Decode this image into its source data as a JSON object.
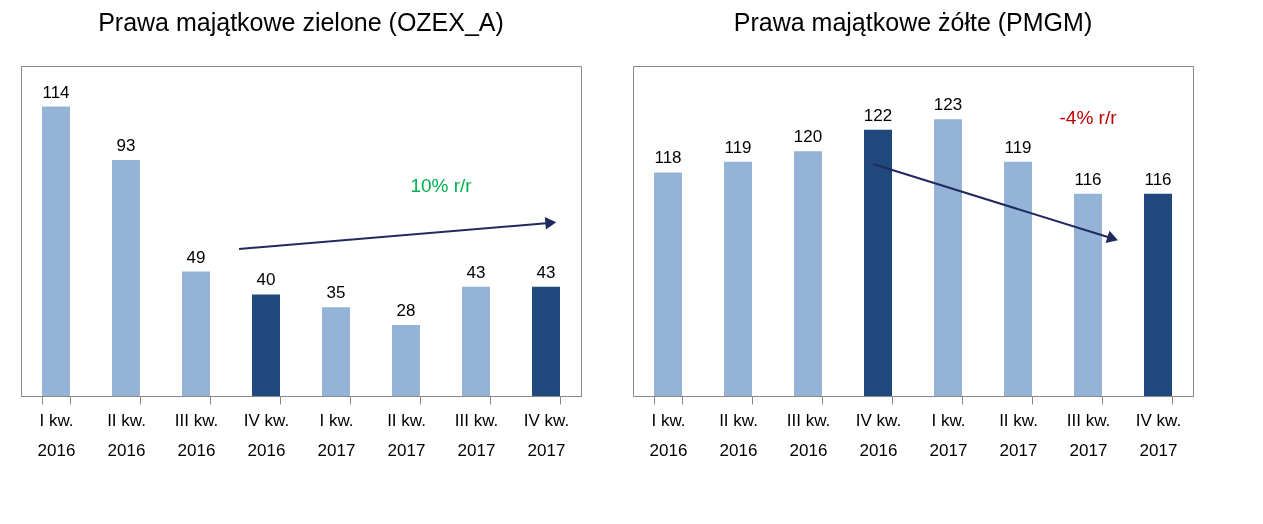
{
  "chart_data": [
    {
      "type": "bar",
      "title": "Prawa majątkowe zielone (OZEX_A)",
      "categories": [
        "I kw. 2016",
        "II kw. 2016",
        "III kw. 2016",
        "IV kw. 2016",
        "I kw. 2017",
        "II kw. 2017",
        "III kw. 2017",
        "IV kw. 2017"
      ],
      "values": [
        114,
        93,
        49,
        40,
        35,
        28,
        43,
        43
      ],
      "colors": [
        "#95b3d7",
        "#95b3d7",
        "#95b3d7",
        "#1f497d",
        "#95b3d7",
        "#95b3d7",
        "#95b3d7",
        "#1f497d"
      ],
      "ylim": [
        0,
        130
      ],
      "data_labels": true,
      "annotations": [
        "10% r/r"
      ]
    },
    {
      "type": "bar",
      "title": "Prawa majątkowe żółte (PMGM)",
      "categories": [
        "I kw. 2016",
        "II kw. 2016",
        "III kw. 2016",
        "IV kw. 2016",
        "I kw. 2017",
        "II kw. 2017",
        "III kw. 2017",
        "IV kw. 2017"
      ],
      "values": [
        118,
        119,
        120,
        122,
        123,
        119,
        116,
        116
      ],
      "colors": [
        "#95b3d7",
        "#95b3d7",
        "#95b3d7",
        "#1f497d",
        "#95b3d7",
        "#95b3d7",
        "#95b3d7",
        "#1f497d"
      ],
      "ylim": [
        97,
        128
      ],
      "data_labels": true,
      "annotations": [
        "-4% r/r"
      ]
    }
  ]
}
